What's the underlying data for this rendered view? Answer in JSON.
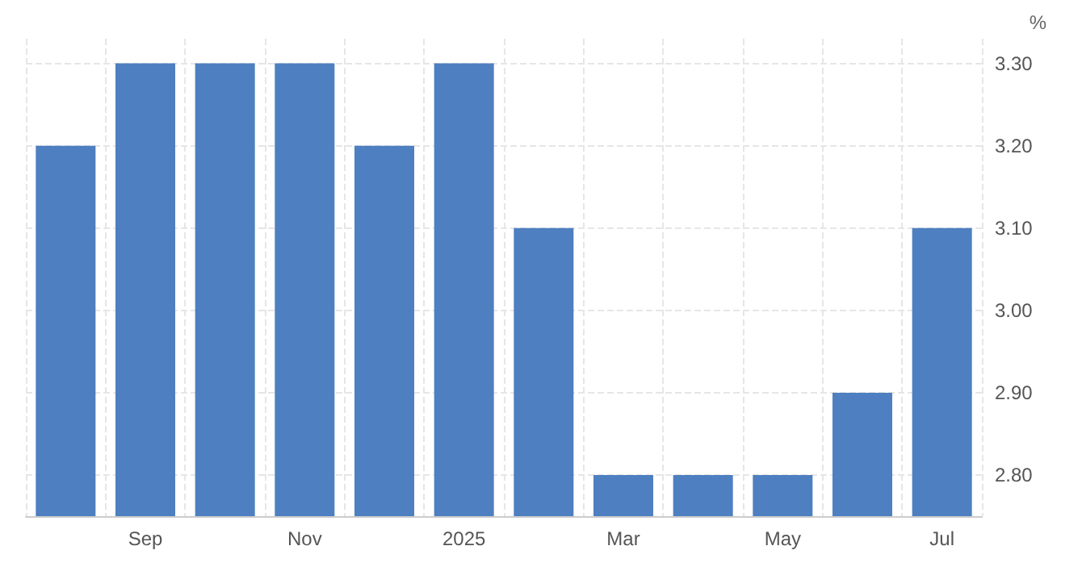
{
  "chart_data": {
    "type": "bar",
    "ylabel": "%",
    "categories": [
      null,
      "Sep",
      null,
      "Nov",
      null,
      "2025",
      null,
      "Mar",
      null,
      "May",
      null,
      "Jul"
    ],
    "values": [
      3.2,
      3.3,
      3.3,
      3.3,
      3.2,
      3.3,
      3.1,
      2.8,
      2.8,
      2.8,
      2.9,
      3.1
    ],
    "color": "#4e7fc0",
    "ylim": [
      2.75,
      3.33
    ],
    "yticks": [
      {
        "value": 2.8,
        "label": "2.80"
      },
      {
        "value": 2.9,
        "label": "2.90"
      },
      {
        "value": 3.0,
        "label": "3.00"
      },
      {
        "value": 3.1,
        "label": "3.10"
      },
      {
        "value": 3.2,
        "label": "3.20"
      },
      {
        "value": 3.3,
        "label": "3.30"
      }
    ],
    "grid": true
  }
}
